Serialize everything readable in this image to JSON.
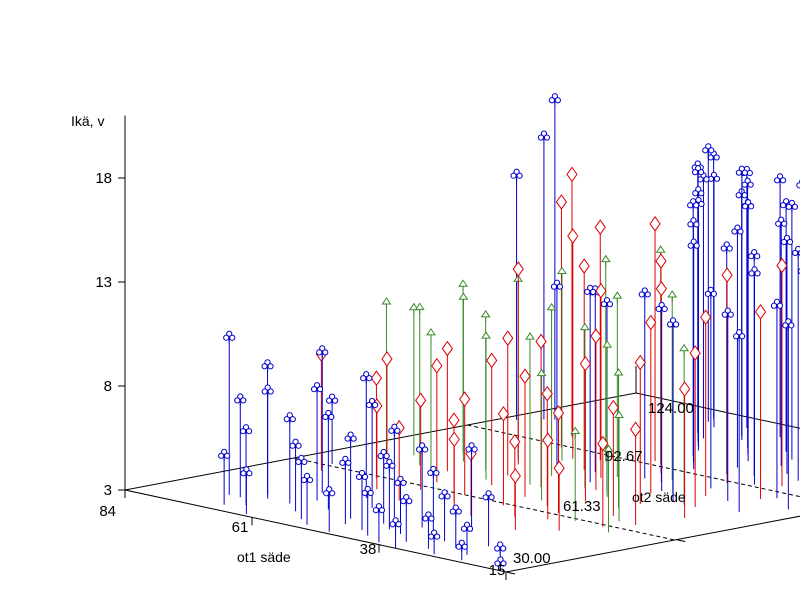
{
  "chart_data": {
    "type": "scatter",
    "subtype": "3d-stem",
    "title": "",
    "z_axis": {
      "label": "Ikä, v",
      "ticks": [
        "3",
        "8",
        "13",
        "18"
      ],
      "range": [
        3,
        21
      ]
    },
    "x_axis": {
      "label": "ot1 säde",
      "ticks": [
        "84",
        "61",
        "38",
        "15"
      ],
      "range": [
        84,
        15
      ]
    },
    "y_axis": {
      "label": "ot2 säde",
      "ticks": [
        "30.00",
        "61.33",
        "92.67",
        "124.00"
      ],
      "range": [
        30,
        124
      ]
    },
    "legend": "none",
    "grid": false,
    "series": [
      {
        "marker": "club",
        "color": "#0000cc",
        "points": [
          [
            82,
            100,
            11.8
          ],
          [
            80,
            103,
            13.6
          ],
          [
            79,
            104,
            15.4
          ],
          [
            78,
            62,
            3.1
          ],
          [
            73,
            38,
            7.6
          ],
          [
            71,
            38,
            4.7
          ],
          [
            70,
            42,
            6.2
          ],
          [
            69,
            33,
            2.4
          ],
          [
            68,
            40,
            5.2
          ],
          [
            67,
            35,
            3.6
          ],
          [
            66,
            48,
            6.8
          ],
          [
            66,
            120,
            12.6
          ],
          [
            65,
            118,
            13.1
          ],
          [
            64,
            40,
            4.1
          ],
          [
            63,
            31,
            2.0
          ],
          [
            63,
            44,
            5.4
          ],
          [
            62,
            116,
            12.0
          ],
          [
            61,
            112,
            12.8
          ],
          [
            60,
            37,
            3.2
          ],
          [
            60,
            50,
            5.8
          ],
          [
            59,
            119,
            12.3
          ],
          [
            58,
            110,
            12.5
          ],
          [
            58,
            41,
            4.5
          ],
          [
            57,
            108,
            13.0
          ],
          [
            56,
            34,
            2.8
          ],
          [
            56,
            115,
            11.6
          ],
          [
            55,
            106,
            12.2
          ],
          [
            55,
            46,
            5.0
          ],
          [
            54,
            113,
            12.9
          ],
          [
            53,
            32,
            2.2
          ],
          [
            53,
            104,
            11.9
          ],
          [
            52,
            39,
            3.9
          ],
          [
            52,
            118,
            12.4
          ],
          [
            51,
            101,
            12.1
          ],
          [
            50,
            36,
            3.0
          ],
          [
            50,
            110,
            12.7
          ],
          [
            49,
            44,
            4.2
          ],
          [
            49,
            120,
            11.8
          ],
          [
            48,
            98,
            11.5
          ],
          [
            48,
            31,
            1.9
          ],
          [
            47,
            107,
            12.0
          ],
          [
            47,
            40,
            3.3
          ],
          [
            46,
            116,
            12.6
          ],
          [
            46,
            35,
            2.6
          ],
          [
            45,
            95,
            10.8
          ],
          [
            45,
            112,
            11.9
          ],
          [
            44,
            38,
            3.1
          ],
          [
            44,
            104,
            12.3
          ],
          [
            43,
            33,
            2.1
          ],
          [
            43,
            119,
            12.8
          ],
          [
            42,
            100,
            11.4
          ],
          [
            42,
            42,
            3.8
          ],
          [
            41,
            109,
            12.2
          ],
          [
            41,
            37,
            2.5
          ],
          [
            40,
            96,
            10.9
          ],
          [
            40,
            115,
            12.1
          ],
          [
            39,
            31,
            1.6
          ],
          [
            39,
            105,
            11.7
          ],
          [
            38,
            40,
            3.0
          ],
          [
            38,
            121,
            12.5
          ],
          [
            37,
            98,
            10.6
          ],
          [
            37,
            34,
            2.0
          ],
          [
            36,
            111,
            12.0
          ],
          [
            36,
            45,
            4.0
          ],
          [
            35,
            102,
            11.2
          ],
          [
            35,
            30,
            1.2
          ],
          [
            34,
            117,
            12.4
          ],
          [
            34,
            38,
            2.2
          ],
          [
            33,
            94,
            10.2
          ],
          [
            33,
            108,
            11.8
          ],
          [
            32,
            33,
            1.5
          ],
          [
            32,
            120,
            12.7
          ],
          [
            31,
            100,
            11.0
          ],
          [
            30,
            36,
            1.8
          ],
          [
            30,
            113,
            12.2
          ],
          [
            29,
            31,
            0.9
          ],
          [
            29,
            105,
            11.5
          ],
          [
            28,
            118,
            12.6
          ],
          [
            28,
            40,
            2.4
          ],
          [
            27,
            97,
            10.5
          ],
          [
            26,
            110,
            12.0
          ],
          [
            26,
            34,
            1.3
          ],
          [
            25,
            121,
            12.8
          ],
          [
            24,
            102,
            11.0
          ],
          [
            24,
            31,
            0.7
          ],
          [
            23,
            115,
            12.3
          ],
          [
            22,
            107,
            11.6
          ],
          [
            21,
            122,
            12.9
          ],
          [
            20,
            99,
            10.4
          ],
          [
            19,
            33,
            0.8
          ],
          [
            18,
            112,
            12.0
          ],
          [
            17,
            104,
            11.2
          ],
          [
            16,
            30,
            0.4
          ],
          [
            15,
            118,
            12.4
          ],
          [
            55,
            80,
            9.0
          ],
          [
            52,
            84,
            8.7
          ],
          [
            48,
            79,
            9.2
          ],
          [
            45,
            86,
            8.9
          ],
          [
            42,
            76,
            9.1
          ],
          [
            38,
            82,
            8.8
          ],
          [
            35,
            88,
            9.4
          ],
          [
            32,
            78,
            8.6
          ],
          [
            28,
            84,
            9.0
          ],
          [
            25,
            90,
            9.3
          ],
          [
            22,
            80,
            8.5
          ],
          [
            19,
            86,
            8.9
          ]
        ]
      },
      {
        "marker": "diamond",
        "color": "#dd0000",
        "points": [
          [
            76,
            58,
            5.6
          ],
          [
            72,
            66,
            5.2
          ],
          [
            70,
            98,
            12.6
          ],
          [
            68,
            60,
            4.8
          ],
          [
            66,
            92,
            11.8
          ],
          [
            65,
            70,
            5.9
          ],
          [
            63,
            55,
            4.0
          ],
          [
            62,
            80,
            9.4
          ],
          [
            61,
            64,
            5.6
          ],
          [
            60,
            88,
            10.7
          ],
          [
            59,
            59,
            4.3
          ],
          [
            58,
            74,
            6.6
          ],
          [
            57,
            90,
            11.2
          ],
          [
            56,
            52,
            3.5
          ],
          [
            55,
            68,
            6.0
          ],
          [
            54,
            84,
            9.8
          ],
          [
            53,
            61,
            4.6
          ],
          [
            52,
            95,
            11.4
          ],
          [
            51,
            57,
            3.9
          ],
          [
            50,
            72,
            7.0
          ],
          [
            49,
            82,
            9.0
          ],
          [
            48,
            54,
            3.3
          ],
          [
            47,
            66,
            5.8
          ],
          [
            46,
            90,
            10.2
          ],
          [
            45,
            60,
            4.4
          ],
          [
            44,
            76,
            7.4
          ],
          [
            43,
            52,
            3.0
          ],
          [
            42,
            86,
            9.3
          ],
          [
            41,
            64,
            5.4
          ],
          [
            40,
            70,
            6.6
          ],
          [
            39,
            56,
            3.6
          ],
          [
            38,
            80,
            8.2
          ],
          [
            37,
            62,
            4.8
          ],
          [
            36,
            92,
            10.0
          ],
          [
            35,
            58,
            3.8
          ],
          [
            34,
            74,
            6.8
          ],
          [
            33,
            50,
            2.6
          ],
          [
            32,
            84,
            8.6
          ],
          [
            31,
            66,
            5.2
          ],
          [
            30,
            96,
            10.6
          ],
          [
            29,
            54,
            3.0
          ],
          [
            28,
            78,
            7.4
          ],
          [
            27,
            60,
            4.0
          ],
          [
            26,
            88,
            9.0
          ],
          [
            25,
            64,
            4.6
          ],
          [
            24,
            72,
            6.2
          ],
          [
            22,
            122,
            17.4
          ]
        ]
      },
      {
        "marker": "spade",
        "color": "#3a8a2a",
        "points": [
          [
            78,
            72,
            7.2
          ],
          [
            75,
            74,
            7.0
          ],
          [
            72,
            80,
            8.0
          ],
          [
            70,
            70,
            7.5
          ],
          [
            68,
            76,
            7.8
          ],
          [
            66,
            68,
            6.6
          ],
          [
            64,
            82,
            8.6
          ],
          [
            62,
            74,
            7.4
          ],
          [
            60,
            86,
            9.0
          ],
          [
            58,
            70,
            6.8
          ],
          [
            56,
            90,
            9.6
          ],
          [
            54,
            78,
            8.0
          ],
          [
            52,
            72,
            7.0
          ],
          [
            50,
            94,
            10.2
          ],
          [
            48,
            84,
            8.6
          ],
          [
            46,
            76,
            7.6
          ],
          [
            44,
            66,
            6.0
          ],
          [
            42,
            88,
            8.8
          ],
          [
            40,
            74,
            7.2
          ],
          [
            38,
            118,
            13.6
          ],
          [
            36,
            82,
            8.0
          ],
          [
            34,
            70,
            6.4
          ],
          [
            32,
            60,
            4.2
          ],
          [
            30,
            78,
            7.4
          ],
          [
            28,
            64,
            5.0
          ],
          [
            24,
            58,
            3.9
          ]
        ]
      }
    ]
  }
}
